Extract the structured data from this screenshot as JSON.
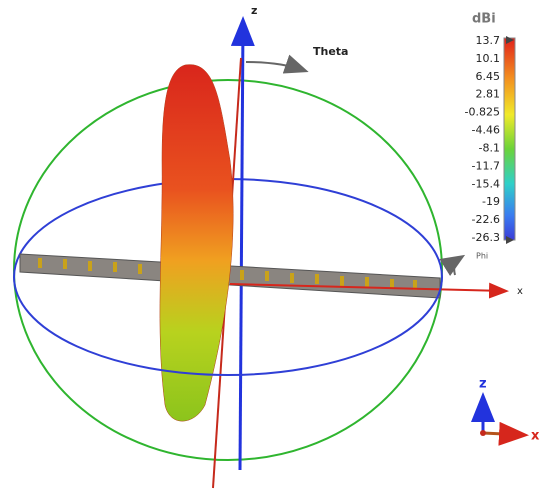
{
  "axes": {
    "z": "z",
    "x": "x",
    "theta": "Theta",
    "phi": "Phi"
  },
  "colorbar": {
    "unit": "dBi",
    "labels": [
      "13.7",
      "10.1",
      "6.45",
      "2.81",
      "-0.825",
      "-4.46",
      "-8.1",
      "-11.7",
      "-15.4",
      "-19",
      "-22.6",
      "-26.3"
    ]
  },
  "triad": {
    "z": "z",
    "x": "x"
  }
}
